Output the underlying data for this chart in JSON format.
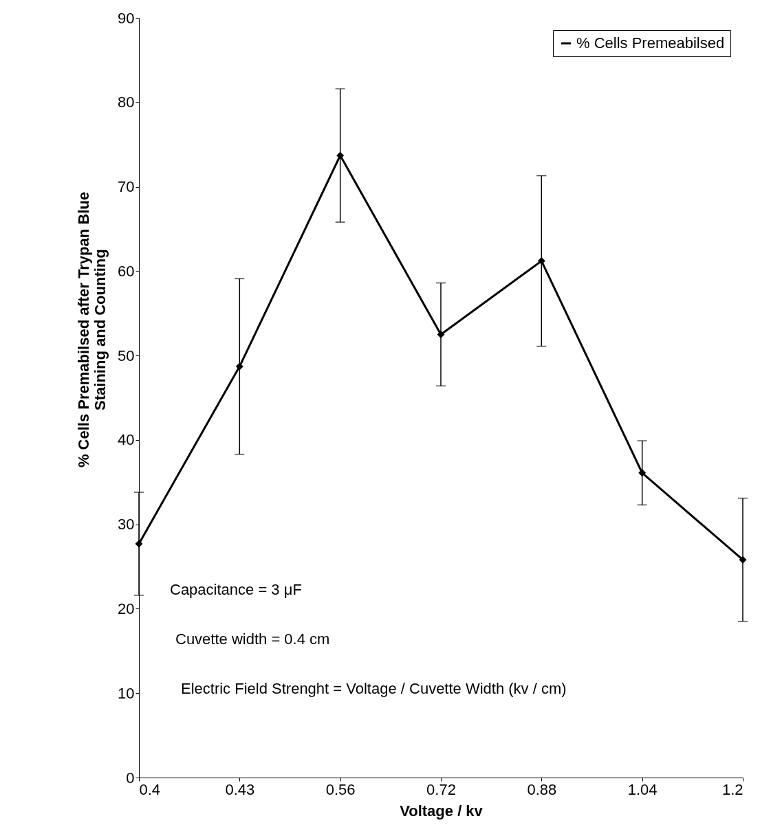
{
  "chart_data": {
    "type": "line",
    "xlabel": "Voltage / kv",
    "ylabel": "% Cells Premabilsed after Trypan Blue Staining and Counting",
    "categories": [
      "0.4",
      "0.43",
      "0.56",
      "0.72",
      "0.88",
      "1.04",
      "1.2"
    ],
    "series": [
      {
        "name": "% Cells Premeabilsed",
        "color": "#000000",
        "values": [
          27.7,
          48.7,
          73.7,
          52.5,
          61.2,
          36.1,
          25.8
        ],
        "errors": [
          6.1,
          10.4,
          7.9,
          6.1,
          10.1,
          3.8,
          7.3
        ]
      }
    ],
    "ylim": [
      0,
      90
    ],
    "yticks": [
      0,
      10,
      20,
      30,
      40,
      50,
      60,
      70,
      80,
      90
    ],
    "marker": "diamond",
    "line_style": "solid",
    "grid": false,
    "legend": "top right",
    "annotations": [
      "Capacitance = 3 μF",
      "Cuvette width = 0.4 cm",
      "Electric Field Strenght = Voltage / Cuvette Width (kv / cm)"
    ]
  }
}
